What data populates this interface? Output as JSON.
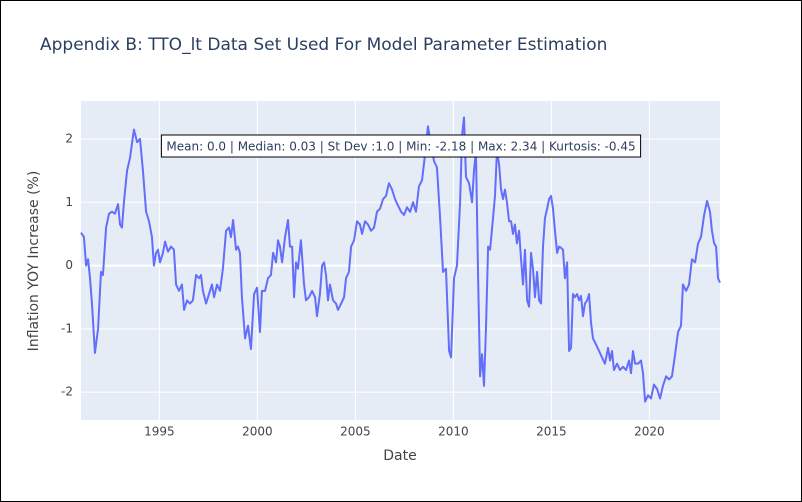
{
  "chart_data": {
    "type": "line",
    "title": "Appendix B: TTO_lt Data Set Used For Model Parameter Estimation",
    "x_label": "Date",
    "y_label": "Inflation YOY Increase (%)",
    "annotation": "Mean: 0.0 | Median: 0.03 | St Dev :1.0 | Min: -2.18 | Max: 2.34 | Kurtosis: -0.45",
    "color": "#636efa",
    "grid": true,
    "xlim": [
      1991,
      2023.6
    ],
    "xticks": [
      1995,
      2000,
      2005,
      2010,
      2015,
      2020
    ],
    "ylim": [
      -2.44,
      2.6
    ],
    "yticks": [
      -2,
      -1,
      0,
      1,
      2
    ],
    "x": [
      1991.0,
      1991.15,
      1991.26,
      1991.36,
      1991.46,
      1991.56,
      1991.71,
      1991.87,
      1992.02,
      1992.12,
      1992.28,
      1992.43,
      1992.58,
      1992.73,
      1992.89,
      1992.99,
      1993.09,
      1993.19,
      1993.35,
      1993.5,
      1993.7,
      1993.86,
      1994.01,
      1994.16,
      1994.32,
      1994.47,
      1994.62,
      1994.72,
      1994.83,
      1994.93,
      1995.03,
      1995.18,
      1995.29,
      1995.44,
      1995.59,
      1995.74,
      1995.85,
      1996.0,
      1996.15,
      1996.26,
      1996.41,
      1996.56,
      1996.71,
      1996.87,
      1997.02,
      1997.12,
      1997.22,
      1997.38,
      1997.53,
      1997.68,
      1997.79,
      1997.94,
      1998.09,
      1998.24,
      1998.4,
      1998.55,
      1998.65,
      1998.76,
      1998.91,
      1999.01,
      1999.11,
      1999.21,
      1999.37,
      1999.52,
      1999.67,
      1999.83,
      1999.98,
      2000.13,
      2000.23,
      2000.39,
      2000.54,
      2000.69,
      2000.8,
      2000.95,
      2001.05,
      2001.15,
      2001.26,
      2001.41,
      2001.56,
      2001.66,
      2001.77,
      2001.87,
      2001.97,
      2002.07,
      2002.22,
      2002.38,
      2002.48,
      2002.63,
      2002.79,
      2002.94,
      2003.04,
      2003.19,
      2003.3,
      2003.4,
      2003.5,
      2003.6,
      2003.7,
      2003.86,
      2004.01,
      2004.11,
      2004.27,
      2004.42,
      2004.52,
      2004.67,
      2004.78,
      2004.93,
      2005.08,
      2005.23,
      2005.34,
      2005.49,
      2005.64,
      2005.8,
      2005.95,
      2006.1,
      2006.26,
      2006.41,
      2006.56,
      2006.71,
      2006.87,
      2007.02,
      2007.17,
      2007.33,
      2007.48,
      2007.63,
      2007.79,
      2007.94,
      2008.09,
      2008.24,
      2008.4,
      2008.55,
      2008.7,
      2008.86,
      2009.01,
      2009.16,
      2009.32,
      2009.47,
      2009.62,
      2009.78,
      2009.88,
      2010.03,
      2010.18,
      2010.34,
      2010.44,
      2010.54,
      2010.64,
      2010.8,
      2010.95,
      2011.05,
      2011.15,
      2011.26,
      2011.36,
      2011.46,
      2011.56,
      2011.66,
      2011.77,
      2011.87,
      2012.02,
      2012.12,
      2012.22,
      2012.33,
      2012.43,
      2012.53,
      2012.63,
      2012.73,
      2012.84,
      2012.94,
      2013.04,
      2013.14,
      2013.24,
      2013.35,
      2013.45,
      2013.55,
      2013.65,
      2013.76,
      2013.86,
      2013.96,
      2014.06,
      2014.16,
      2014.27,
      2014.37,
      2014.47,
      2014.57,
      2014.67,
      2014.78,
      2014.88,
      2014.98,
      2015.08,
      2015.18,
      2015.29,
      2015.39,
      2015.49,
      2015.59,
      2015.69,
      2015.8,
      2015.9,
      2016.0,
      2016.1,
      2016.2,
      2016.31,
      2016.41,
      2016.51,
      2016.61,
      2016.71,
      2016.82,
      2016.92,
      2017.02,
      2017.12,
      2017.28,
      2017.43,
      2017.58,
      2017.73,
      2017.89,
      2017.99,
      2018.09,
      2018.19,
      2018.35,
      2018.5,
      2018.65,
      2018.81,
      2018.96,
      2019.06,
      2019.16,
      2019.27,
      2019.42,
      2019.57,
      2019.67,
      2019.78,
      2019.93,
      2020.08,
      2020.23,
      2020.39,
      2020.54,
      2020.69,
      2020.85,
      2021.0,
      2021.15,
      2021.31,
      2021.46,
      2021.61,
      2021.71,
      2021.87,
      2022.02,
      2022.17,
      2022.33,
      2022.48,
      2022.63,
      2022.79,
      2022.94,
      2023.09,
      2023.19,
      2023.3,
      2023.4,
      2023.5,
      2023.6
    ],
    "values": [
      0.52,
      0.45,
      0,
      0.1,
      -0.2,
      -0.6,
      -1.38,
      -1.0,
      -0.1,
      -0.15,
      0.6,
      0.82,
      0.85,
      0.82,
      0.97,
      0.65,
      0.6,
      1.0,
      1.5,
      1.7,
      2.15,
      1.95,
      2.0,
      1.5,
      0.85,
      0.7,
      0.45,
      0,
      0.2,
      0.25,
      0.05,
      0.2,
      0.38,
      0.22,
      0.3,
      0.25,
      -0.3,
      -0.4,
      -0.3,
      -0.7,
      -0.55,
      -0.6,
      -0.55,
      -0.15,
      -0.2,
      -0.15,
      -0.4,
      -0.6,
      -0.45,
      -0.3,
      -0.5,
      -0.3,
      -0.4,
      -0.05,
      0.55,
      0.6,
      0.45,
      0.72,
      0.25,
      0.3,
      0.2,
      -0.5,
      -1.15,
      -0.95,
      -1.32,
      -0.45,
      -0.35,
      -1.05,
      -0.4,
      -0.4,
      -0.2,
      -0.15,
      0.2,
      0.05,
      0.4,
      0.3,
      0.05,
      0.45,
      0.72,
      0.3,
      0.3,
      -0.5,
      0.05,
      -0.05,
      0.4,
      -0.3,
      -0.55,
      -0.5,
      -0.4,
      -0.5,
      -0.8,
      -0.45,
      0,
      0.05,
      -0.15,
      -0.55,
      -0.3,
      -0.55,
      -0.6,
      -0.7,
      -0.6,
      -0.5,
      -0.2,
      -0.1,
      0.3,
      0.4,
      0.7,
      0.65,
      0.5,
      0.7,
      0.65,
      0.55,
      0.6,
      0.85,
      0.9,
      1.05,
      1.1,
      1.3,
      1.2,
      1.05,
      0.95,
      0.85,
      0.8,
      0.92,
      0.85,
      1.0,
      0.85,
      1.25,
      1.35,
      1.75,
      2.2,
      1.9,
      1.65,
      1.55,
      0.75,
      -0.1,
      -0.05,
      -1.35,
      -1.45,
      -0.2,
      0,
      1.0,
      2.05,
      2.34,
      1.4,
      1.3,
      1.0,
      1.5,
      1.8,
      -0.2,
      -1.75,
      -1.4,
      -1.9,
      -1.0,
      0.3,
      0.25,
      0.75,
      1.1,
      1.8,
      1.6,
      1.2,
      1.05,
      1.2,
      1.0,
      0.7,
      0.7,
      0.5,
      0.65,
      0.35,
      0.55,
      0.1,
      -0.3,
      0.25,
      -0.55,
      -0.65,
      0.2,
      -0.05,
      -0.5,
      -0.1,
      -0.55,
      -0.6,
      0.3,
      0.75,
      0.9,
      1.05,
      1.1,
      0.9,
      0.55,
      0.2,
      0.3,
      0.28,
      0.25,
      -0.2,
      0.05,
      -1.35,
      -1.3,
      -0.45,
      -0.5,
      -0.45,
      -0.55,
      -0.48,
      -0.8,
      -0.6,
      -0.55,
      -0.45,
      -0.9,
      -1.15,
      -1.25,
      -1.35,
      -1.45,
      -1.55,
      -1.3,
      -1.5,
      -1.35,
      -1.65,
      -1.55,
      -1.65,
      -1.6,
      -1.65,
      -1.5,
      -1.7,
      -1.35,
      -1.55,
      -1.55,
      -1.5,
      -1.7,
      -2.15,
      -2.05,
      -2.1,
      -1.88,
      -1.95,
      -2.1,
      -1.9,
      -1.75,
      -1.8,
      -1.75,
      -1.4,
      -1.05,
      -0.95,
      -0.3,
      -0.4,
      -0.3,
      0.1,
      0.05,
      0.35,
      0.45,
      0.8,
      1.02,
      0.85,
      0.55,
      0.35,
      0.3,
      -0.2,
      -0.27
    ]
  }
}
